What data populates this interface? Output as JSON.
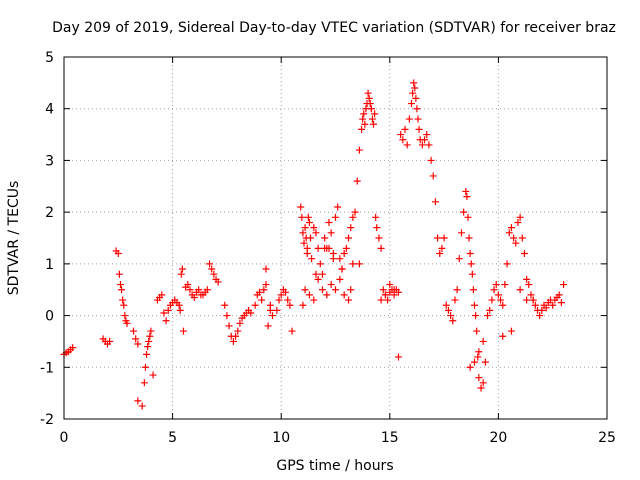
{
  "chart_data": {
    "type": "scatter",
    "title": "Day 209 of 2019, Sidereal Day-to-day VTEC variation (SDTVAR) for receiver braz",
    "xlabel": "GPS time / hours",
    "ylabel": "SDTVAR / TECUs",
    "xlim": [
      0,
      25
    ],
    "ylim": [
      -2,
      5
    ],
    "xticks": [
      "0",
      "5",
      "10",
      "15",
      "20",
      "25"
    ],
    "yticks": [
      "-2",
      "-1",
      "0",
      "1",
      "2",
      "3",
      "4",
      "5"
    ],
    "grid": true,
    "marker": "+",
    "color": "#ff0000",
    "series": [
      {
        "name": "SDTVAR",
        "x": [
          0.0,
          0.1,
          0.2,
          0.3,
          0.4,
          1.8,
          1.9,
          2.0,
          2.1,
          2.4,
          2.5,
          2.55,
          2.6,
          2.65,
          2.7,
          2.75,
          2.8,
          2.85,
          2.9,
          3.2,
          3.3,
          3.4,
          3.7,
          3.75,
          3.8,
          3.85,
          3.9,
          3.95,
          4.0,
          4.3,
          4.4,
          4.5,
          4.6,
          4.7,
          4.8,
          4.9,
          5.0,
          5.1,
          5.2,
          5.3,
          5.35,
          5.4,
          5.45,
          5.5,
          5.6,
          5.7,
          5.8,
          5.9,
          6.0,
          6.1,
          6.2,
          6.3,
          6.4,
          6.5,
          6.6,
          6.7,
          6.8,
          6.9,
          7.0,
          7.1,
          7.4,
          7.5,
          7.6,
          7.7,
          7.8,
          7.9,
          8.0,
          8.1,
          8.2,
          8.3,
          8.4,
          8.5,
          8.6,
          8.8,
          8.9,
          9.0,
          9.1,
          9.2,
          9.3,
          9.4,
          9.5,
          9.6,
          9.8,
          9.9,
          10.0,
          10.1,
          10.2,
          10.3,
          10.4,
          10.9,
          10.95,
          11.0,
          11.05,
          11.1,
          11.15,
          11.2,
          11.25,
          11.3,
          11.35,
          11.4,
          11.5,
          11.6,
          11.7,
          11.8,
          11.9,
          12.0,
          12.1,
          12.2,
          12.3,
          12.4,
          12.5,
          12.6,
          12.7,
          12.8,
          12.9,
          13.0,
          13.1,
          13.2,
          13.3,
          13.4,
          13.5,
          13.6,
          13.7,
          13.75,
          13.8,
          13.85,
          13.9,
          13.95,
          14.0,
          14.05,
          14.1,
          14.15,
          14.2,
          14.25,
          14.3,
          14.35,
          14.4,
          14.5,
          14.6,
          14.7,
          14.8,
          14.9,
          15.0,
          15.1,
          15.2,
          15.3,
          15.4,
          15.5,
          15.6,
          15.7,
          15.8,
          15.9,
          16.0,
          16.05,
          16.1,
          16.15,
          16.2,
          16.25,
          16.3,
          16.35,
          16.4,
          16.5,
          16.6,
          16.7,
          16.8,
          16.9,
          17.0,
          17.1,
          17.2,
          17.3,
          17.4,
          17.5,
          17.6,
          17.7,
          17.8,
          17.9,
          18.0,
          18.1,
          18.2,
          18.3,
          18.4,
          18.5,
          18.55,
          18.6,
          18.65,
          18.7,
          18.75,
          18.8,
          18.85,
          18.9,
          18.95,
          19.0,
          19.05,
          19.1,
          19.2,
          19.3,
          19.4,
          19.5,
          19.6,
          19.7,
          19.8,
          19.9,
          20.0,
          20.1,
          20.2,
          20.3,
          20.4,
          20.5,
          20.6,
          20.7,
          20.8,
          20.9,
          21.0,
          21.1,
          21.2,
          21.3,
          21.4,
          21.5,
          21.6,
          21.7,
          21.8,
          21.9,
          22.0,
          22.1,
          22.2,
          22.3,
          22.4,
          22.5,
          22.6,
          22.7,
          22.8,
          22.9,
          23.0,
          11.1,
          11.3,
          11.5,
          11.7,
          11.9,
          12.1,
          12.3,
          12.5,
          12.7,
          12.9,
          13.1,
          13.3,
          11.2,
          11.6,
          12.0,
          12.4,
          12.8,
          13.2,
          14.6,
          14.8,
          15.0,
          15.2,
          15.4,
          18.7,
          18.9,
          19.1,
          19.3,
          20.2,
          20.6,
          21.0,
          21.3,
          21.6,
          9.3,
          9.5,
          10.5,
          11.0,
          12.2,
          13.6,
          3.4,
          3.6,
          4.1
        ],
        "y": [
          -0.75,
          -0.72,
          -0.7,
          -0.66,
          -0.62,
          -0.45,
          -0.5,
          -0.55,
          -0.5,
          1.25,
          1.2,
          0.8,
          0.6,
          0.5,
          0.3,
          0.2,
          0.0,
          -0.1,
          -0.15,
          -0.3,
          -0.45,
          -0.55,
          -1.3,
          -1.0,
          -0.75,
          -0.6,
          -0.5,
          -0.4,
          -0.3,
          0.3,
          0.35,
          0.4,
          0.05,
          -0.1,
          0.1,
          0.2,
          0.25,
          0.3,
          0.25,
          0.2,
          0.1,
          0.8,
          0.9,
          -0.3,
          0.55,
          0.6,
          0.5,
          0.4,
          0.35,
          0.45,
          0.5,
          0.4,
          0.4,
          0.45,
          0.5,
          1.0,
          0.9,
          0.8,
          0.7,
          0.65,
          0.2,
          0.0,
          -0.2,
          -0.4,
          -0.5,
          -0.4,
          -0.3,
          -0.15,
          -0.05,
          0.0,
          0.05,
          0.1,
          0.05,
          0.2,
          0.4,
          0.45,
          0.3,
          0.5,
          0.9,
          -0.2,
          0.2,
          0.0,
          0.1,
          0.3,
          0.4,
          0.5,
          0.45,
          0.3,
          0.2,
          2.1,
          1.9,
          1.6,
          1.4,
          1.7,
          1.5,
          1.3,
          1.9,
          1.8,
          1.5,
          1.1,
          1.7,
          1.6,
          1.3,
          1.0,
          0.8,
          1.5,
          1.3,
          1.8,
          1.6,
          1.2,
          1.9,
          2.1,
          1.1,
          0.9,
          1.2,
          1.3,
          1.5,
          1.7,
          1.9,
          2.0,
          2.6,
          3.2,
          3.6,
          3.8,
          3.9,
          3.7,
          4.0,
          4.1,
          4.3,
          4.2,
          4.1,
          4.0,
          3.8,
          3.7,
          3.9,
          1.9,
          1.7,
          1.5,
          1.3,
          0.5,
          0.4,
          0.3,
          0.45,
          0.5,
          0.4,
          0.5,
          0.45,
          3.5,
          3.4,
          3.6,
          3.3,
          3.8,
          4.1,
          4.3,
          4.5,
          4.4,
          4.2,
          4.0,
          3.8,
          3.6,
          3.4,
          3.3,
          3.4,
          3.5,
          3.3,
          3.0,
          2.7,
          2.2,
          1.5,
          1.2,
          1.3,
          1.5,
          0.2,
          0.1,
          0.0,
          -0.1,
          0.3,
          0.5,
          1.1,
          1.6,
          2.0,
          2.4,
          2.3,
          1.9,
          1.5,
          1.2,
          1.0,
          0.8,
          0.5,
          0.2,
          0.0,
          -0.3,
          -0.8,
          -1.2,
          -1.4,
          -1.3,
          -0.9,
          0.0,
          0.1,
          0.3,
          0.5,
          0.6,
          0.4,
          0.3,
          0.2,
          0.6,
          1.0,
          1.6,
          1.7,
          1.5,
          1.4,
          1.8,
          1.9,
          1.5,
          1.2,
          0.7,
          0.6,
          0.4,
          0.3,
          0.2,
          0.1,
          0.0,
          0.1,
          0.2,
          0.15,
          0.25,
          0.3,
          0.2,
          0.3,
          0.35,
          0.4,
          0.25,
          0.6,
          0.5,
          0.4,
          0.3,
          0.7,
          0.5,
          0.4,
          0.6,
          0.5,
          0.7,
          0.4,
          0.3,
          1.0,
          1.2,
          0.8,
          1.3,
          1.1,
          0.9,
          0.5,
          0.3,
          0.4,
          0.6,
          0.5,
          -0.8,
          -1.0,
          -0.9,
          -0.7,
          -0.5,
          -0.4,
          -0.3,
          0.5,
          0.3,
          0.3,
          0.6,
          0.1,
          -0.3,
          0.2,
          1.3,
          1.0,
          -1.65,
          -1.75,
          -1.15
        ]
      }
    ]
  }
}
